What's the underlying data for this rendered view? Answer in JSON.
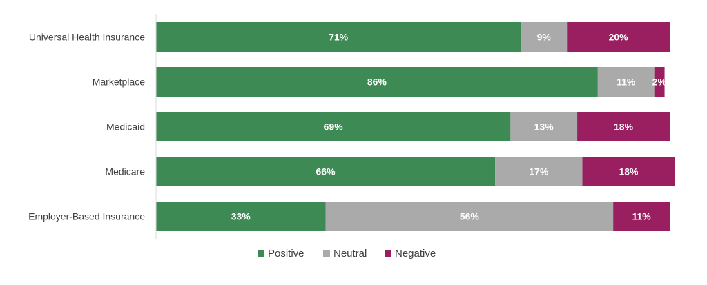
{
  "chart_data": {
    "type": "bar",
    "orientation": "horizontal",
    "stacked": true,
    "title": "",
    "xlabel": "",
    "ylabel": "",
    "xlim": [
      0,
      100
    ],
    "grid": false,
    "legend_position": "bottom",
    "categories": [
      "Universal Health Insurance",
      "Marketplace",
      "Medicaid",
      "Medicare",
      "Employer-Based Insurance"
    ],
    "series": [
      {
        "name": "Positive",
        "color": "#3e8a55",
        "values": [
          71,
          86,
          69,
          66,
          33
        ],
        "labels": [
          "71%",
          "86%",
          "69%",
          "66%",
          "33%"
        ]
      },
      {
        "name": "Neutral",
        "color": "#aaaaaa",
        "values": [
          9,
          11,
          13,
          17,
          56
        ],
        "labels": [
          "9%",
          "11%",
          "13%",
          "17%",
          "56%"
        ]
      },
      {
        "name": "Negative",
        "color": "#9a1f61",
        "values": [
          20,
          2,
          18,
          18,
          11
        ],
        "labels": [
          "20%",
          "2%",
          "18%",
          "18%",
          "11%"
        ]
      }
    ]
  }
}
